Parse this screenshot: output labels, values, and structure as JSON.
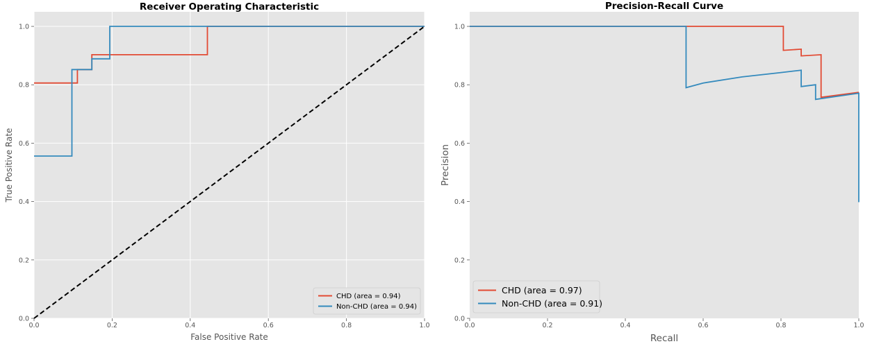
{
  "colors": {
    "chd": "#E24A33",
    "non_chd": "#348ABD",
    "diagonal": "#000000",
    "panel_bg": "#E5E5E5",
    "grid": "#FFFFFF"
  },
  "chart_data": [
    {
      "type": "line",
      "title": "Receiver Operating Characteristic",
      "xlabel": "False Positive Rate",
      "ylabel": "True Positive Rate",
      "xlim": [
        0,
        1
      ],
      "ylim": [
        0,
        1.05
      ],
      "xticks": [
        "0.0",
        "0.2",
        "0.4",
        "0.6",
        "0.8",
        "1.0"
      ],
      "yticks": [
        "0.0",
        "0.2",
        "0.4",
        "0.6",
        "0.8",
        "1.0"
      ],
      "grid": true,
      "legend_position": "lower-right",
      "series": [
        {
          "name": "CHD (area = 0.94)",
          "color": "#E24A33",
          "x": [
            0.0,
            0.111,
            0.111,
            0.148,
            0.148,
            0.444,
            0.444,
            1.0
          ],
          "y": [
            0.806,
            0.806,
            0.852,
            0.852,
            0.903,
            0.903,
            1.0,
            1.0
          ]
        },
        {
          "name": "Non-CHD (area = 0.94)",
          "color": "#348ABD",
          "x": [
            0.0,
            0.097,
            0.097,
            0.148,
            0.148,
            0.194,
            0.194,
            1.0
          ],
          "y": [
            0.556,
            0.556,
            0.852,
            0.852,
            0.889,
            0.889,
            1.0,
            1.0
          ]
        },
        {
          "name": "",
          "color": "#000000",
          "dashed": true,
          "x": [
            0,
            1
          ],
          "y": [
            0,
            1
          ]
        }
      ]
    },
    {
      "type": "line",
      "title": "Precision-Recall Curve",
      "xlabel": "Recall",
      "ylabel": "Precision",
      "xlim": [
        0,
        1
      ],
      "ylim": [
        0,
        1.05
      ],
      "xticks": [
        "0.0",
        "0.2",
        "0.4",
        "0.6",
        "0.8",
        "1.0"
      ],
      "yticks": [
        "0.0",
        "0.2",
        "0.4",
        "0.6",
        "0.8",
        "1.0"
      ],
      "grid": false,
      "legend_position": "lower-left",
      "series": [
        {
          "name": "CHD (area = 0.97)",
          "color": "#E24A33",
          "x": [
            0.0,
            0.806,
            0.806,
            0.852,
            0.852,
            0.903,
            0.903,
            1.0
          ],
          "y": [
            1.0,
            1.0,
            0.918,
            0.922,
            0.899,
            0.903,
            0.757,
            0.774
          ]
        },
        {
          "name": "Non-CHD (area = 0.91)",
          "color": "#348ABD",
          "x": [
            0.0,
            0.556,
            0.556,
            0.6,
            0.7,
            0.8,
            0.852,
            0.852,
            0.889,
            0.889,
            1.0,
            1.0
          ],
          "y": [
            1.0,
            1.0,
            0.79,
            0.806,
            0.827,
            0.842,
            0.85,
            0.794,
            0.8,
            0.75,
            0.771,
            0.398
          ]
        }
      ]
    }
  ]
}
